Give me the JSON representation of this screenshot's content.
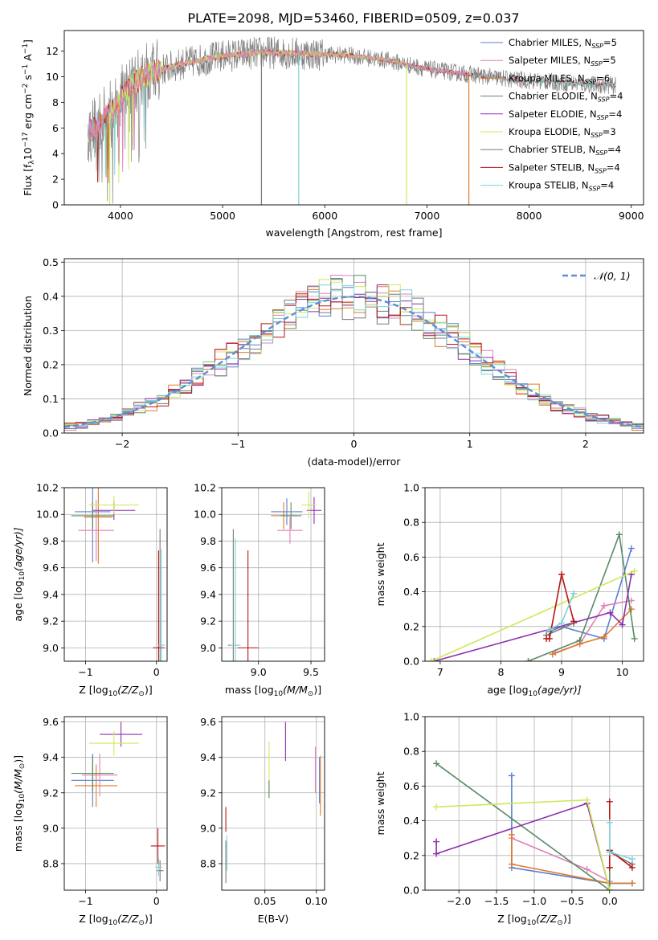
{
  "figure": {
    "title": "PLATE=2098, MJD=53460, FIBERID=0509, z=0.037"
  },
  "colors": {
    "Chabrier MILES": "#5b7fd1",
    "Salpeter MILES": "#e27fb6",
    "Kroupa MILES": "#e07b2a",
    "Chabrier ELODIE": "#5a8a64",
    "Salpeter ELODIE": "#8f2fae",
    "Kroupa ELODIE": "#cfe85a",
    "Chabrier STELIB": "#7a7a7a",
    "Salpeter STELIB": "#b81414",
    "Kroupa STELIB": "#7fd3d6"
  },
  "chart_data": [
    {
      "id": "spectrum",
      "type": "line",
      "title": "PLATE=2098, MJD=53460, FIBERID=0509, z=0.037",
      "xlabel": "wavelength [Angstrom, rest frame]",
      "ylabel_main": "Flux [f",
      "ylabel_sub": "λ",
      "ylabel_mid": "10",
      "ylabel_sup": "−17",
      "ylabel_tail": " erg cm",
      "ylabel_sup2": "−2",
      "ylabel_tail2": " s",
      "ylabel_sup3": "−1",
      "ylabel_tail3": " A",
      "ylabel_sup4": "−1",
      "ylabel_end": "]",
      "xlim": [
        3450,
        9120
      ],
      "ylim": [
        0,
        13.6
      ],
      "xticks": [
        "4000",
        "5000",
        "6000",
        "7000",
        "8000",
        "9000"
      ],
      "yticks": [
        "0",
        "2",
        "4",
        "6",
        "8",
        "10",
        "12"
      ],
      "legend_position": "upper-right",
      "legend": [
        {
          "name": "Chabrier MILES, N",
          "sub": "SSP",
          "end": "=5",
          "color": "Chabrier MILES"
        },
        {
          "name": "Salpeter MILES, N",
          "sub": "SSP",
          "end": "=5",
          "color": "Salpeter MILES"
        },
        {
          "name": "Kroupa MILES, N",
          "sub": "SSP",
          "end": "=6",
          "color": "Kroupa MILES"
        },
        {
          "name": "Chabrier ELODIE, N",
          "sub": "SSP",
          "end": "=4",
          "color": "Chabrier ELODIE"
        },
        {
          "name": "Salpeter ELODIE, N",
          "sub": "SSP",
          "end": "=4",
          "color": "Salpeter ELODIE"
        },
        {
          "name": "Kroupa ELODIE, N",
          "sub": "SSP",
          "end": "=3",
          "color": "Kroupa ELODIE"
        },
        {
          "name": "Chabrier STELIB, N",
          "sub": "SSP",
          "end": "=4",
          "color": "Chabrier STELIB"
        },
        {
          "name": "Salpeter STELIB, N",
          "sub": "SSP",
          "end": "=4",
          "color": "Salpeter STELIB"
        },
        {
          "name": "Kroupa STELIB, N",
          "sub": "SSP",
          "end": "=4",
          "color": "Kroupa STELIB"
        }
      ],
      "continuum": [
        [
          3680,
          5.6
        ],
        [
          3800,
          6.4
        ],
        [
          3950,
          7.6
        ],
        [
          4100,
          9.4
        ],
        [
          4300,
          10.3
        ],
        [
          4600,
          11.0
        ],
        [
          5000,
          11.6
        ],
        [
          5400,
          11.9
        ],
        [
          5800,
          11.8
        ],
        [
          6200,
          11.7
        ],
        [
          6600,
          11.3
        ],
        [
          7000,
          10.6
        ],
        [
          7400,
          10.2
        ],
        [
          7800,
          9.8
        ],
        [
          8200,
          9.6
        ],
        [
          8600,
          9.4
        ],
        [
          8850,
          9.3
        ]
      ],
      "series_ranges": [
        {
          "color": "Chabrier STELIB",
          "x": [
            3680,
            8850
          ]
        },
        {
          "color": "Kroupa MILES",
          "x": [
            3680,
            7410
          ]
        },
        {
          "color": "Salpeter STELIB",
          "x": [
            3680,
            8850
          ]
        },
        {
          "color": "Kroupa STELIB",
          "x": [
            3680,
            8850
          ]
        },
        {
          "color": "Kroupa ELODIE",
          "x": [
            3900,
            6800
          ]
        },
        {
          "color": "Salpeter MILES",
          "x": [
            3680,
            7410
          ]
        }
      ],
      "dropouts": [
        {
          "color": "Kroupa STELIB",
          "x": 5745
        },
        {
          "color": "Chabrier STELIB",
          "x": 5380
        },
        {
          "color": "Kroupa ELODIE",
          "x": 6800
        },
        {
          "color": "Kroupa MILES",
          "x": 7410
        },
        {
          "color": "Kroupa ELODIE",
          "x": 3895
        }
      ]
    },
    {
      "id": "residuals",
      "type": "histogram",
      "xlabel": "(data-model)/error",
      "ylabel": "Normed distribution",
      "xlim": [
        -2.5,
        2.5
      ],
      "ylim": [
        0,
        0.51
      ],
      "xticks": [
        "−2",
        "−1",
        "0",
        "1",
        "2"
      ],
      "yticks": [
        "0.0",
        "0.1",
        "0.2",
        "0.3",
        "0.4",
        "0.5"
      ],
      "legend_position": "upper-right",
      "legend_label": "𝒩(0, 1)",
      "bin_width": 0.1,
      "series_order": [
        "Chabrier MILES",
        "Salpeter MILES",
        "Kroupa MILES",
        "Chabrier ELODIE",
        "Salpeter ELODIE",
        "Kroupa ELODIE",
        "Chabrier STELIB",
        "Salpeter STELIB",
        "Kroupa STELIB"
      ]
    },
    {
      "id": "age-vs-z",
      "type": "scatter",
      "xlabel_main": "Z [log",
      "xlabel_sub": "10",
      "xlabel_end": "(Z/Z",
      "xlabel_sun": "⊙",
      "xlabel_close": ")]",
      "ylabel_main": "age  [log",
      "ylabel_sub": "10",
      "ylabel_end": "(age/yr)]",
      "xlim": [
        -1.3,
        0.15
      ],
      "ylim": [
        8.9,
        10.2
      ],
      "xticks": [
        "−1",
        "0"
      ],
      "yticks": [
        "9.0",
        "9.2",
        "9.4",
        "9.6",
        "9.8",
        "10.0",
        "10.2"
      ],
      "points": [
        {
          "color": "Chabrier MILES",
          "x": -0.9,
          "y": 10.02,
          "xerr": 0.25,
          "yerr": 0.38
        },
        {
          "color": "Salpeter MILES",
          "x": -0.85,
          "y": 9.88,
          "xerr": 0.25,
          "yerr": 0.23
        },
        {
          "color": "Kroupa MILES",
          "x": -0.82,
          "y": 9.98,
          "xerr": 0.2,
          "yerr": 0.35
        },
        {
          "color": "Chabrier ELODIE",
          "x": -0.9,
          "y": 9.99,
          "xerr": 0.3,
          "yerr": 0.1
        },
        {
          "color": "Salpeter ELODIE",
          "x": -0.6,
          "y": 10.03,
          "xerr": 0.3,
          "yerr": 0.07
        },
        {
          "color": "Kroupa ELODIE",
          "x": -0.6,
          "y": 10.07,
          "xerr": 0.35,
          "yerr": 0.07
        },
        {
          "color": "Chabrier STELIB",
          "x": 0.05,
          "y": 9.02,
          "xerr": 0.03,
          "yerr": 0.87
        },
        {
          "color": "Salpeter STELIB",
          "x": 0.03,
          "y": 9.0,
          "xerr": 0.08,
          "yerr": 0.73
        },
        {
          "color": "Kroupa STELIB",
          "x": 0.07,
          "y": 9.02,
          "xerr": 0.05,
          "yerr": 0.72
        }
      ]
    },
    {
      "id": "age-vs-mass",
      "type": "scatter",
      "xlabel_main": "mass [log",
      "xlabel_sub": "10",
      "xlabel_end": "(M/M",
      "xlabel_sun": "⊙",
      "xlabel_close": ")]",
      "xlim": [
        8.65,
        9.63
      ],
      "ylim": [
        8.9,
        10.2
      ],
      "xticks": [
        "9.0",
        "9.5"
      ],
      "yticks": [
        "9.0",
        "9.2",
        "9.4",
        "9.6",
        "9.8",
        "10.0",
        "10.2"
      ],
      "points": [
        {
          "color": "Chabrier MILES",
          "x": 9.27,
          "y": 10.02,
          "xerr": 0.15,
          "yerr": 0.1
        },
        {
          "color": "Salpeter MILES",
          "x": 9.3,
          "y": 9.88,
          "xerr": 0.12,
          "yerr": 0.1
        },
        {
          "color": "Kroupa MILES",
          "x": 9.24,
          "y": 9.99,
          "xerr": 0.12,
          "yerr": 0.1
        },
        {
          "color": "Chabrier ELODIE",
          "x": 9.31,
          "y": 9.99,
          "xerr": 0.1,
          "yerr": 0.1
        },
        {
          "color": "Salpeter ELODIE",
          "x": 9.53,
          "y": 10.03,
          "xerr": 0.07,
          "yerr": 0.1
        },
        {
          "color": "Kroupa ELODIE",
          "x": 9.48,
          "y": 10.07,
          "xerr": 0.07,
          "yerr": 0.1
        },
        {
          "color": "Chabrier STELIB",
          "x": 8.76,
          "y": 9.02,
          "xerr": 0.05,
          "yerr": 0.87
        },
        {
          "color": "Salpeter STELIB",
          "x": 8.9,
          "y": 9.0,
          "xerr": 0.1,
          "yerr": 0.73
        },
        {
          "color": "Kroupa STELIB",
          "x": 8.78,
          "y": 9.02,
          "xerr": 0.05,
          "yerr": 0.8
        }
      ]
    },
    {
      "id": "weight-vs-age",
      "type": "line",
      "xlabel_main": "age  [log",
      "xlabel_sub": "10",
      "xlabel_end": "(age/yr)]",
      "ylabel": "mass weight",
      "xlim": [
        6.75,
        10.35
      ],
      "ylim": [
        0,
        1.0
      ],
      "xticks": [
        "7",
        "8",
        "9",
        "10"
      ],
      "yticks": [
        "0.0",
        "0.2",
        "0.4",
        "0.6",
        "0.8",
        "1.0"
      ],
      "series": [
        {
          "color": "Chabrier MILES",
          "x": [
            8.8,
            9.0,
            9.7,
            10.15
          ],
          "y": [
            0.17,
            0.2,
            0.13,
            0.65
          ]
        },
        {
          "color": "Salpeter MILES",
          "x": [
            8.9,
            9.3,
            9.7,
            10.15
          ],
          "y": [
            0.05,
            0.1,
            0.32,
            0.35
          ]
        },
        {
          "color": "Kroupa MILES",
          "x": [
            8.85,
            9.3,
            9.7,
            10.15
          ],
          "y": [
            0.04,
            0.1,
            0.14,
            0.3
          ]
        },
        {
          "color": "Chabrier ELODIE",
          "x": [
            8.45,
            9.3,
            9.95,
            10.2
          ],
          "y": [
            0.0,
            0.12,
            0.73,
            0.13
          ]
        },
        {
          "color": "Salpeter ELODIE",
          "x": [
            6.9,
            9.8,
            10.0,
            10.15
          ],
          "y": [
            0.0,
            0.28,
            0.21,
            0.5
          ]
        },
        {
          "color": "Kroupa ELODIE",
          "x": [
            6.85,
            10.2
          ],
          "y": [
            0.0,
            0.52
          ]
        },
        {
          "color": "Chabrier STELIB",
          "x": [
            8.75,
            9.2
          ],
          "y": [
            0.15,
            0.22
          ]
        },
        {
          "color": "Salpeter STELIB",
          "x": [
            8.75,
            8.8,
            9.0,
            9.2
          ],
          "y": [
            0.13,
            0.13,
            0.5,
            0.23
          ]
        },
        {
          "color": "Kroupa STELIB",
          "x": [
            8.8,
            9.0,
            9.2
          ],
          "y": [
            0.18,
            0.22,
            0.39
          ]
        }
      ]
    },
    {
      "id": "mass-vs-z",
      "type": "scatter",
      "xlabel_main": "Z [log",
      "xlabel_sub": "10",
      "xlabel_end": "(Z/Z",
      "xlabel_sun": "⊙",
      "xlabel_close": ")]",
      "ylabel_main": "mass [log",
      "ylabel_sub": "10",
      "ylabel_end": "(M/M",
      "ylabel_sun": "⊙",
      "ylabel_close": ")]",
      "xlim": [
        -1.3,
        0.15
      ],
      "ylim": [
        8.65,
        9.63
      ],
      "xticks": [
        "−1",
        "0"
      ],
      "yticks": [
        "8.8",
        "9.0",
        "9.2",
        "9.4",
        "9.6"
      ],
      "points": [
        {
          "color": "Chabrier MILES",
          "x": -0.9,
          "y": 9.27,
          "xerr": 0.3,
          "yerr": 0.15
        },
        {
          "color": "Salpeter MILES",
          "x": -0.8,
          "y": 9.3,
          "xerr": 0.25,
          "yerr": 0.12
        },
        {
          "color": "Kroupa MILES",
          "x": -0.85,
          "y": 9.24,
          "xerr": 0.3,
          "yerr": 0.12
        },
        {
          "color": "Chabrier ELODIE",
          "x": -0.9,
          "y": 9.31,
          "xerr": 0.3,
          "yerr": 0.1
        },
        {
          "color": "Salpeter ELODIE",
          "x": -0.5,
          "y": 9.53,
          "xerr": 0.3,
          "yerr": 0.07
        },
        {
          "color": "Kroupa ELODIE",
          "x": -0.6,
          "y": 9.48,
          "xerr": 0.35,
          "yerr": 0.07
        },
        {
          "color": "Chabrier STELIB",
          "x": 0.05,
          "y": 8.76,
          "xerr": 0.05,
          "yerr": 0.06
        },
        {
          "color": "Salpeter STELIB",
          "x": 0.02,
          "y": 8.9,
          "xerr": 0.1,
          "yerr": 0.1
        },
        {
          "color": "Kroupa STELIB",
          "x": 0.03,
          "y": 8.78,
          "xerr": 0.05,
          "yerr": 0.05
        }
      ]
    },
    {
      "id": "mass-vs-ebv",
      "type": "scatter",
      "xlabel": "E(B-V)",
      "xlim": [
        0.008,
        0.108
      ],
      "ylim": [
        8.65,
        9.63
      ],
      "xticks": [
        "0.05",
        "0.10"
      ],
      "yticks": [
        "8.8",
        "9.0",
        "9.2",
        "9.4",
        "9.6"
      ],
      "points": [
        {
          "color": "Salpeter MILES",
          "x": 0.099,
          "y": 9.33,
          "xerr": 0,
          "yerr": 0.13
        },
        {
          "color": "Kroupa MILES",
          "x": 0.104,
          "y": 9.24,
          "xerr": 0,
          "yerr": 0.17
        },
        {
          "color": "Chabrier MILES",
          "x": 0.103,
          "y": 9.27,
          "xerr": 0,
          "yerr": 0.13
        },
        {
          "color": "Salpeter ELODIE",
          "x": 0.07,
          "y": 9.49,
          "xerr": 0,
          "yerr": 0.11
        },
        {
          "color": "Kroupa ELODIE",
          "x": 0.054,
          "y": 9.36,
          "xerr": 0,
          "yerr": 0.13
        },
        {
          "color": "Chabrier ELODIE",
          "x": 0.054,
          "y": 9.22,
          "xerr": 0,
          "yerr": 0.05
        },
        {
          "color": "Salpeter STELIB",
          "x": 0.012,
          "y": 9.05,
          "xerr": 0,
          "yerr": 0.07
        },
        {
          "color": "Chabrier STELIB",
          "x": 0.012,
          "y": 8.81,
          "xerr": 0,
          "yerr": 0.12
        },
        {
          "color": "Kroupa STELIB",
          "x": 0.013,
          "y": 8.86,
          "xerr": 0,
          "yerr": 0.1
        }
      ]
    },
    {
      "id": "weight-vs-z",
      "type": "line",
      "xlabel_main": "Z [log",
      "xlabel_sub": "10",
      "xlabel_end": "(Z/Z",
      "xlabel_sun": "⊙",
      "xlabel_close": ")]",
      "ylabel": "mass weight",
      "xlim": [
        -2.45,
        0.45
      ],
      "ylim": [
        0,
        1.0
      ],
      "xticks": [
        "−2.0",
        "−1.5",
        "−1.0",
        "−0.5",
        "0.0"
      ],
      "yticks": [
        "0.0",
        "0.2",
        "0.4",
        "0.6",
        "0.8",
        "1.0"
      ],
      "series": [
        {
          "color": "Chabrier MILES",
          "x": [
            -1.3,
            -1.3,
            0.0,
            0.3
          ],
          "y": [
            0.66,
            0.13,
            0.04,
            0.04
          ]
        },
        {
          "color": "Salpeter MILES",
          "x": [
            -1.3,
            -0.3,
            0.0
          ],
          "y": [
            0.3,
            0.12,
            0.05
          ]
        },
        {
          "color": "Kroupa MILES",
          "x": [
            -1.3,
            -1.3,
            0.0,
            0.3
          ],
          "y": [
            0.32,
            0.15,
            0.04,
            0.04
          ]
        },
        {
          "color": "Chabrier ELODIE",
          "x": [
            -2.3,
            0.0,
            0.0
          ],
          "y": [
            0.73,
            0.0,
            0.13
          ]
        },
        {
          "color": "Salpeter ELODIE",
          "x": [
            -2.3,
            -2.3,
            -0.3,
            0.0
          ],
          "y": [
            0.28,
            0.21,
            0.5,
            0.0
          ]
        },
        {
          "color": "Kroupa ELODIE",
          "x": [
            -2.3,
            -0.3,
            0.0
          ],
          "y": [
            0.48,
            0.52,
            0.0
          ]
        },
        {
          "color": "Chabrier STELIB",
          "x": [
            0.0,
            0.3
          ],
          "y": [
            0.22,
            0.15
          ]
        },
        {
          "color": "Salpeter STELIB",
          "x": [
            0.0,
            0.0,
            0.0,
            0.3
          ],
          "y": [
            0.51,
            0.13,
            0.23,
            0.13
          ]
        },
        {
          "color": "Kroupa STELIB",
          "x": [
            0.0,
            0.0,
            0.3
          ],
          "y": [
            0.39,
            0.22,
            0.18
          ]
        }
      ]
    }
  ]
}
